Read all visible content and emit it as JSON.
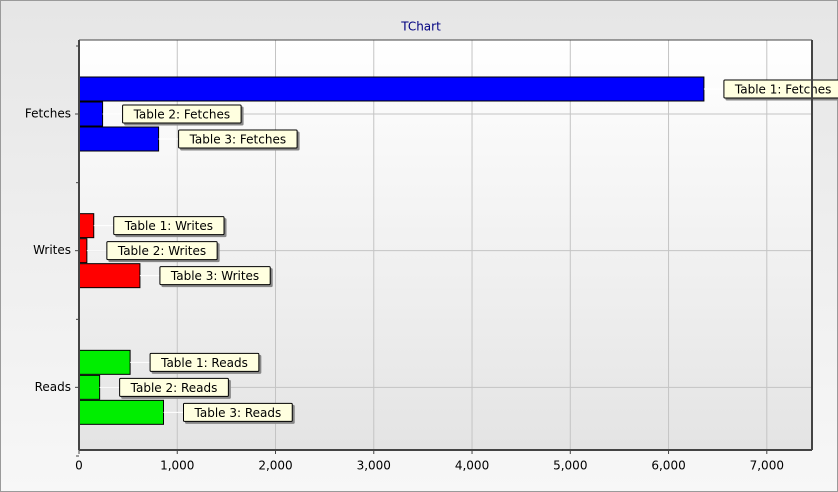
{
  "chart_data": {
    "type": "hbar",
    "title": "TChart",
    "groups": [
      {
        "name": "Fetches",
        "color": "#0000ff",
        "bars": [
          {
            "label": "Table 1: Fetches",
            "value": 6360
          },
          {
            "label": "Table 2: Fetches",
            "value": 240
          },
          {
            "label": "Table 3: Fetches",
            "value": 810
          }
        ]
      },
      {
        "name": "Writes",
        "color": "#ff0000",
        "bars": [
          {
            "label": "Table 1: Writes",
            "value": 150
          },
          {
            "label": "Table 2: Writes",
            "value": 80
          },
          {
            "label": "Table 3: Writes",
            "value": 620
          }
        ]
      },
      {
        "name": "Reads",
        "color": "#00ee00",
        "bars": [
          {
            "label": "Table 1: Reads",
            "value": 520
          },
          {
            "label": "Table 2: Reads",
            "value": 210
          },
          {
            "label": "Table 3: Reads",
            "value": 860
          }
        ]
      }
    ],
    "xlim": [
      0,
      7460
    ],
    "xticks": [
      0,
      {
        "value": 1000,
        "label": "1,000"
      },
      {
        "value": 2000,
        "label": "2,000"
      },
      {
        "value": 3000,
        "label": "3,000"
      },
      {
        "value": 4000,
        "label": "4,000"
      },
      {
        "value": 5000,
        "label": "5,000"
      },
      {
        "value": 6000,
        "label": "6,000"
      },
      {
        "value": 7000,
        "label": "7,000"
      }
    ],
    "grid": true
  }
}
